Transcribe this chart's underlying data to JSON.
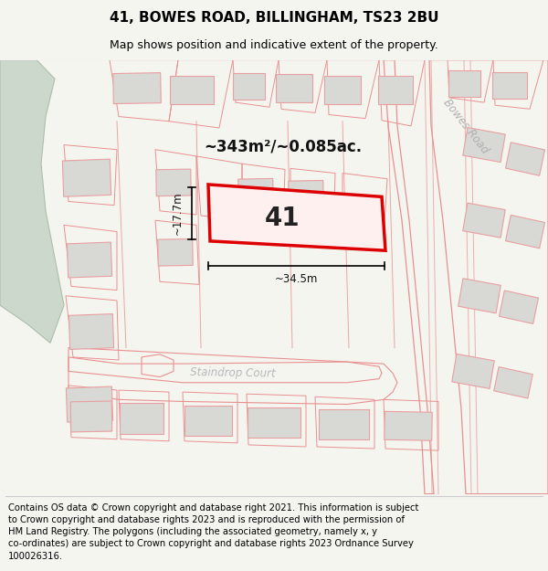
{
  "title": "41, BOWES ROAD, BILLINGHAM, TS23 2BU",
  "subtitle": "Map shows position and indicative extent of the property.",
  "area_text": "~343m²/~0.085ac.",
  "property_number": "41",
  "dim_width": "~34.5m",
  "dim_height": "~17.7m",
  "street_label_1": "Bowes Road",
  "street_label_2": "Staindrop Court",
  "footer": "Contains OS data © Crown copyright and database right 2021. This information is subject to Crown copyright and database rights 2023 and is reproduced with the permission of HM Land Registry. The polygons (including the associated geometry, namely x, y co-ordinates) are subject to Crown copyright and database rights 2023 Ordnance Survey 100026316.",
  "bg_color": "#f5f5f0",
  "map_bg": "#ffffff",
  "plot_color": "#dd0000",
  "plot_fill": "#fff0f0",
  "building_fill": "#d8d8d5",
  "building_edge": "#e8a0a0",
  "road_color": "#e89090",
  "green_fill": "#ccd8cc",
  "title_fontsize": 11,
  "subtitle_fontsize": 9,
  "footer_fontsize": 7.2
}
